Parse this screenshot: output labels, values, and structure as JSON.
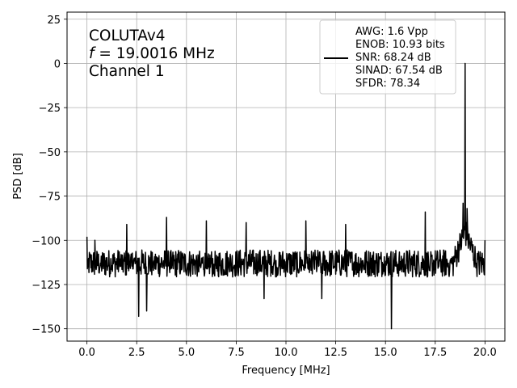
{
  "chart_data": {
    "type": "line",
    "xlabel": "Frequency [MHz]",
    "ylabel": "PSD [dB]",
    "xlim": [
      -1,
      21
    ],
    "ylim": [
      -157,
      29
    ],
    "xticks": [
      0,
      2.5,
      5,
      7.5,
      10,
      12.5,
      15,
      17.5,
      20
    ],
    "xtick_labels": [
      "0.0",
      "2.5",
      "5.0",
      "7.5",
      "10.0",
      "12.5",
      "15.0",
      "17.5",
      "20.0"
    ],
    "yticks": [
      25,
      0,
      -25,
      -50,
      -75,
      -100,
      -125,
      -150
    ],
    "ytick_labels": [
      "25",
      "0",
      "−25",
      "−50",
      "−75",
      "−100",
      "−125",
      "−150"
    ],
    "grid": true,
    "annotation": {
      "line1": "COLUTAv4",
      "line2_var": "f",
      "line2_rest": " = 19.0016 MHz",
      "line3": "Channel 1"
    },
    "legend": {
      "placement": "top-right",
      "entries": [
        "AWG: 1.6 Vpp",
        "ENOB: 10.93 bits",
        "SNR: 68.24 dB",
        "SINAD: 67.54 dB",
        "SFDR: 78.34"
      ]
    },
    "series": [
      {
        "color": "#000000",
        "noise_floor_db": -113,
        "noise_range_db": [
          -125,
          -102
        ],
        "fundamental": {
          "x": 19.0016,
          "y": 0
        },
        "spurs": [
          {
            "x": 0.0,
            "y": -98
          },
          {
            "x": 0.4,
            "y": -100
          },
          {
            "x": 2.0,
            "y": -91
          },
          {
            "x": 2.6,
            "y": -143
          },
          {
            "x": 3.0,
            "y": -140
          },
          {
            "x": 4.0,
            "y": -87
          },
          {
            "x": 6.0,
            "y": -89
          },
          {
            "x": 8.0,
            "y": -90
          },
          {
            "x": 8.9,
            "y": -133
          },
          {
            "x": 11.0,
            "y": -89
          },
          {
            "x": 11.8,
            "y": -133
          },
          {
            "x": 13.0,
            "y": -91
          },
          {
            "x": 15.3,
            "y": -150
          },
          {
            "x": 17.0,
            "y": -84
          },
          {
            "x": 18.9,
            "y": -79
          },
          {
            "x": 19.1,
            "y": -82
          },
          {
            "x": 20.0,
            "y": -100
          }
        ]
      }
    ]
  }
}
